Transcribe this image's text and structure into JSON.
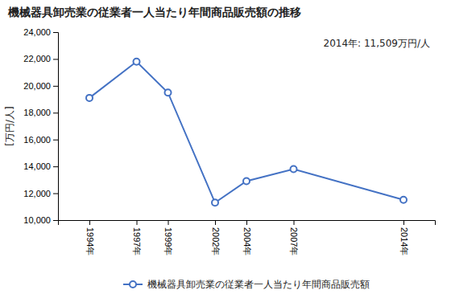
{
  "chart_data": {
    "type": "line",
    "title": "機械器具卸売業の従業者一人当たり年間商品販売額の推移",
    "y_label": "[万円/人]",
    "annotation": "2014年: 11,509万円/人",
    "x": [
      1994,
      1997,
      1999,
      2002,
      2004,
      2007,
      2014
    ],
    "series": [
      {
        "name": "機械器具卸売業の従業者一人当たり年間商品販売額",
        "color": "#4472C4",
        "marker": "circle",
        "values": [
          19100,
          21800,
          19500,
          11300,
          12900,
          13800,
          11509
        ]
      }
    ],
    "xlim": [
      1992,
      2016
    ],
    "xticks": [
      {
        "value": 1994,
        "label": "1994年"
      },
      {
        "value": 1997,
        "label": "1997年"
      },
      {
        "value": 1999,
        "label": "1999年"
      },
      {
        "value": 2002,
        "label": "2002年"
      },
      {
        "value": 2004,
        "label": "2004年"
      },
      {
        "value": 2007,
        "label": "2007年"
      },
      {
        "value": 2014,
        "label": "2014年"
      }
    ],
    "ylim": [
      10000,
      24000
    ],
    "yticks": [
      {
        "value": 10000,
        "label": "10,000"
      },
      {
        "value": 12000,
        "label": "12,000"
      },
      {
        "value": 14000,
        "label": "14,000"
      },
      {
        "value": 16000,
        "label": "16,000"
      },
      {
        "value": 18000,
        "label": "18,000"
      },
      {
        "value": 20000,
        "label": "20,000"
      },
      {
        "value": 22000,
        "label": "22,000"
      },
      {
        "value": 24000,
        "label": "24,000"
      }
    ],
    "grid": false,
    "legend": "bottom"
  }
}
